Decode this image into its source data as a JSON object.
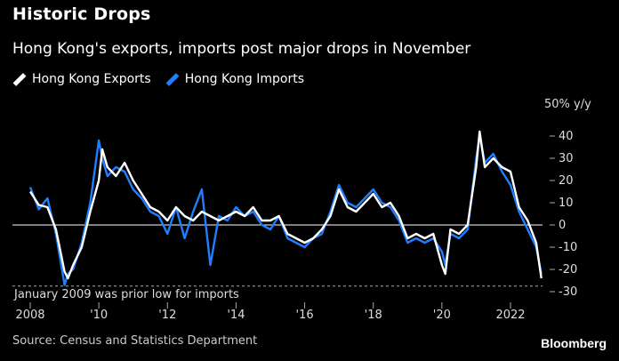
{
  "title": "Historic Drops",
  "subtitle": "Hong Kong's exports, imports post major drops in November",
  "source": "Source: Census and Statistics Department",
  "brand": "Bloomberg",
  "unit_label": "50% y/y",
  "annotation": "January 2009 was prior low for imports",
  "colors": {
    "exports": "#ffffff",
    "imports": "#1f7fff",
    "background": "#000000"
  },
  "legend": [
    {
      "label": "Hong Kong Exports",
      "color": "#ffffff"
    },
    {
      "label": "Hong Kong Imports",
      "color": "#1f7fff"
    }
  ],
  "chart_data": {
    "type": "line",
    "ylim": [
      -30,
      50
    ],
    "yticks": [
      40,
      30,
      20,
      10,
      0,
      -10,
      -20,
      -30
    ],
    "xticks": [
      "2008",
      "'10",
      "'12",
      "'14",
      "'16",
      "'18",
      "'20",
      "2022"
    ],
    "xlim": [
      2008.0,
      2022.9
    ],
    "reference_lines": [
      {
        "y": 0,
        "style": "solid"
      },
      {
        "y": -27.5,
        "style": "dashed"
      }
    ],
    "series": [
      {
        "name": "Hong Kong Exports",
        "x": [
          2008.0,
          2008.25,
          2008.5,
          2008.75,
          2009.0,
          2009.1,
          2009.25,
          2009.5,
          2009.75,
          2010.0,
          2010.1,
          2010.25,
          2010.5,
          2010.75,
          2011.0,
          2011.25,
          2011.5,
          2011.75,
          2012.0,
          2012.25,
          2012.5,
          2012.75,
          2013.0,
          2013.25,
          2013.5,
          2013.75,
          2014.0,
          2014.25,
          2014.5,
          2014.75,
          2015.0,
          2015.25,
          2015.5,
          2015.75,
          2016.0,
          2016.25,
          2016.5,
          2016.75,
          2017.0,
          2017.25,
          2017.5,
          2017.75,
          2018.0,
          2018.25,
          2018.5,
          2018.75,
          2019.0,
          2019.25,
          2019.5,
          2019.75,
          2020.0,
          2020.1,
          2020.25,
          2020.5,
          2020.75,
          2021.0,
          2021.1,
          2021.25,
          2021.5,
          2021.75,
          2022.0,
          2022.25,
          2022.5,
          2022.75,
          2022.9
        ],
        "values": [
          15,
          9,
          8,
          -2,
          -21,
          -24,
          -18,
          -10,
          6,
          20,
          34,
          26,
          22,
          28,
          20,
          14,
          8,
          6,
          2,
          8,
          4,
          2,
          6,
          4,
          2,
          4,
          6,
          4,
          8,
          2,
          2,
          4,
          -4,
          -6,
          -8,
          -6,
          -2,
          4,
          16,
          8,
          6,
          10,
          14,
          8,
          10,
          4,
          -6,
          -4,
          -6,
          -4,
          -18,
          -22,
          -2,
          -4,
          0,
          26,
          42,
          26,
          30,
          26,
          24,
          8,
          2,
          -8,
          -24
        ]
      },
      {
        "name": "Hong Kong Imports",
        "x": [
          2008.0,
          2008.25,
          2008.5,
          2008.75,
          2009.0,
          2009.1,
          2009.25,
          2009.5,
          2009.75,
          2010.0,
          2010.1,
          2010.25,
          2010.5,
          2010.75,
          2011.0,
          2011.25,
          2011.5,
          2011.75,
          2012.0,
          2012.25,
          2012.5,
          2012.75,
          2013.0,
          2013.25,
          2013.5,
          2013.75,
          2014.0,
          2014.25,
          2014.5,
          2014.75,
          2015.0,
          2015.25,
          2015.5,
          2015.75,
          2016.0,
          2016.25,
          2016.5,
          2016.75,
          2017.0,
          2017.25,
          2017.5,
          2017.75,
          2018.0,
          2018.25,
          2018.5,
          2018.75,
          2019.0,
          2019.25,
          2019.5,
          2019.75,
          2020.0,
          2020.1,
          2020.25,
          2020.5,
          2020.75,
          2021.0,
          2021.1,
          2021.25,
          2021.5,
          2021.75,
          2022.0,
          2022.25,
          2022.5,
          2022.75,
          2022.9
        ],
        "values": [
          17,
          7,
          12,
          -4,
          -27,
          -22,
          -20,
          -8,
          10,
          38,
          30,
          22,
          26,
          24,
          16,
          12,
          6,
          4,
          -4,
          8,
          -6,
          6,
          16,
          -18,
          4,
          2,
          8,
          4,
          6,
          0,
          -2,
          4,
          -6,
          -8,
          -10,
          -6,
          -4,
          6,
          18,
          10,
          8,
          12,
          16,
          10,
          8,
          2,
          -8,
          -6,
          -8,
          -6,
          -12,
          -18,
          -4,
          -6,
          -2,
          30,
          40,
          28,
          32,
          24,
          18,
          6,
          -2,
          -10,
          -22
        ]
      }
    ]
  }
}
